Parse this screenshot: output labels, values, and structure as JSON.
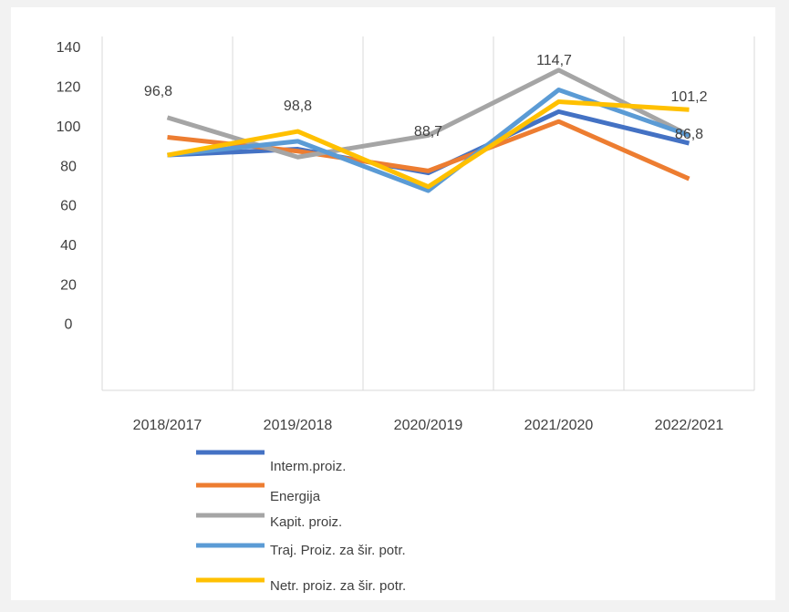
{
  "chart_data": {
    "type": "line",
    "categories": [
      "2018/2017",
      "2019/2018",
      "2020/2019",
      "2021/2020",
      "2022/2021"
    ],
    "series": [
      {
        "name": "Interm.proiz.",
        "color": "#4472c4",
        "values": [
          86,
          89,
          77,
          108,
          92
        ]
      },
      {
        "name": "Energija",
        "color": "#ed7d31",
        "values": [
          95,
          88,
          78,
          103,
          74
        ]
      },
      {
        "name": "Kapit. proiz.",
        "color": "#a5a5a5",
        "values": [
          105,
          85,
          96,
          129,
          96
        ]
      },
      {
        "name": "Traj. Proiz. za šir. potr.",
        "color": "#5b9bd5",
        "values": [
          86,
          93,
          68,
          119,
          96
        ]
      },
      {
        "name": "Netr. proiz. za šir. potr.",
        "color": "#ffc000",
        "values": [
          86,
          98,
          70,
          113,
          109
        ]
      }
    ],
    "annotations": [
      {
        "text": "96,8",
        "category": 0
      },
      {
        "text": "98,8",
        "category": 1
      },
      {
        "text": "88,7",
        "category": 2
      },
      {
        "text": "114,7",
        "category": 3
      },
      {
        "text": "101,2",
        "category": 4
      },
      {
        "text": "86,8",
        "category": 4
      }
    ],
    "ylim": [
      -33,
      146
    ],
    "yticks": [
      0,
      20,
      40,
      60,
      80,
      100,
      120,
      140
    ]
  }
}
